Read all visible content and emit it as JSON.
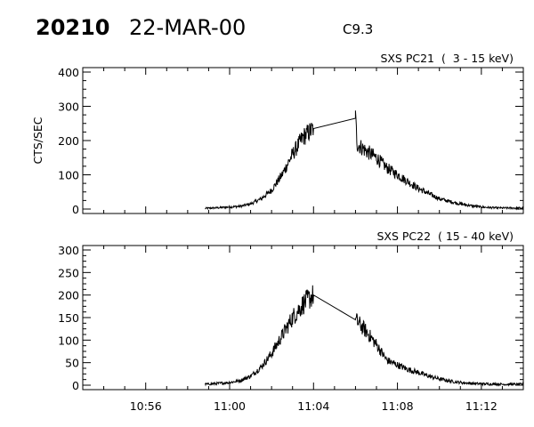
{
  "header": {
    "event_id": "20210",
    "date": "22-MAR-00",
    "goes_class": "C9.3"
  },
  "chart_data": [
    {
      "type": "line",
      "title": "SXS PC21  (  3 - 15 keV)",
      "ylabel": "CTS/SEC",
      "ylim": [
        0,
        400
      ],
      "yticks": [
        0,
        100,
        200,
        300,
        400
      ],
      "xlim": [
        "10:53:00",
        "11:14:00"
      ],
      "xticks": [
        "10:56",
        "11:00",
        "11:04",
        "11:08",
        "11:12"
      ],
      "grid": false,
      "points": [
        [
          "10:58:50",
          2
        ],
        [
          "10:59:30",
          4
        ],
        [
          "11:00:00",
          6
        ],
        [
          "11:00:30",
          8
        ],
        [
          "11:01:00",
          15
        ],
        [
          "11:01:30",
          30
        ],
        [
          "11:02:00",
          55
        ],
        [
          "11:02:30",
          100
        ],
        [
          "11:03:00",
          160
        ],
        [
          "11:03:30",
          210
        ],
        [
          "11:04:00",
          235
        ],
        [
          "11:06:00",
          265
        ],
        [
          "11:06:05",
          190
        ],
        [
          "11:06:30",
          170
        ],
        [
          "11:07:00",
          150
        ],
        [
          "11:07:30",
          120
        ],
        [
          "11:08:00",
          100
        ],
        [
          "11:08:30",
          80
        ],
        [
          "11:09:00",
          60
        ],
        [
          "11:09:30",
          45
        ],
        [
          "11:10:00",
          30
        ],
        [
          "11:10:30",
          22
        ],
        [
          "11:11:00",
          15
        ],
        [
          "11:11:30",
          10
        ],
        [
          "11:12:00",
          6
        ],
        [
          "11:12:30",
          4
        ],
        [
          "11:13:00",
          3
        ],
        [
          "11:14:00",
          3
        ]
      ]
    },
    {
      "type": "line",
      "title": "SXS PC22  ( 15 - 40 keV)",
      "ylabel": "",
      "ylim": [
        0,
        300
      ],
      "yticks": [
        0,
        50,
        100,
        150,
        200,
        250,
        300
      ],
      "xlim": [
        "10:53:00",
        "11:14:00"
      ],
      "xticks": [
        "10:56",
        "11:00",
        "11:04",
        "11:08",
        "11:12"
      ],
      "grid": false,
      "points": [
        [
          "10:58:50",
          2
        ],
        [
          "10:59:30",
          4
        ],
        [
          "11:00:00",
          6
        ],
        [
          "11:00:30",
          10
        ],
        [
          "11:01:00",
          20
        ],
        [
          "11:01:30",
          40
        ],
        [
          "11:02:00",
          70
        ],
        [
          "11:02:30",
          110
        ],
        [
          "11:03:00",
          150
        ],
        [
          "11:03:30",
          180
        ],
        [
          "11:04:00",
          200
        ],
        [
          "11:06:00",
          145
        ],
        [
          "11:06:30",
          120
        ],
        [
          "11:07:00",
          90
        ],
        [
          "11:07:30",
          55
        ],
        [
          "11:08:00",
          45
        ],
        [
          "11:08:30",
          35
        ],
        [
          "11:09:00",
          28
        ],
        [
          "11:09:30",
          20
        ],
        [
          "11:10:00",
          14
        ],
        [
          "11:10:30",
          9
        ],
        [
          "11:11:00",
          6
        ],
        [
          "11:11:30",
          4
        ],
        [
          "11:12:00",
          3
        ],
        [
          "11:13:00",
          2
        ],
        [
          "11:14:00",
          2
        ]
      ]
    }
  ]
}
